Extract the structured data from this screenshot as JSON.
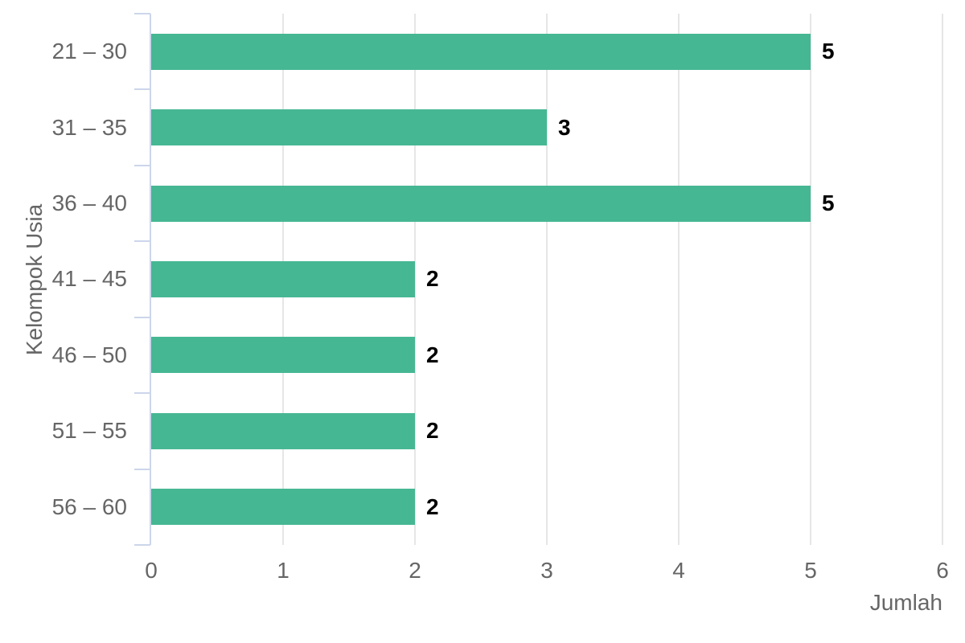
{
  "chart_data": {
    "type": "bar",
    "orientation": "horizontal",
    "title": "",
    "xlabel": "Jumlah",
    "ylabel": "Kelompok Usia",
    "categories": [
      "21 – 30",
      "31 – 35",
      "36 – 40",
      "41 – 45",
      "46 – 50",
      "51 – 55",
      "56 – 60"
    ],
    "values": [
      5,
      3,
      5,
      2,
      2,
      2,
      2
    ],
    "data_labels": [
      "5",
      "3",
      "5",
      "2",
      "2",
      "2",
      "2"
    ],
    "xlim": [
      0,
      6
    ],
    "x_ticks": [
      "0",
      "1",
      "2",
      "3",
      "4",
      "5",
      "6"
    ],
    "grid": true,
    "legend": "none",
    "colors": {
      "bar": "#46b793",
      "gridline": "#e6e6e6",
      "axis_line": "#ccd6eb",
      "tick": "#ccd6eb",
      "axis_labels": "#666666",
      "axis_titles": "#666666",
      "data_labels": "#000000",
      "background": "#ffffff"
    }
  }
}
